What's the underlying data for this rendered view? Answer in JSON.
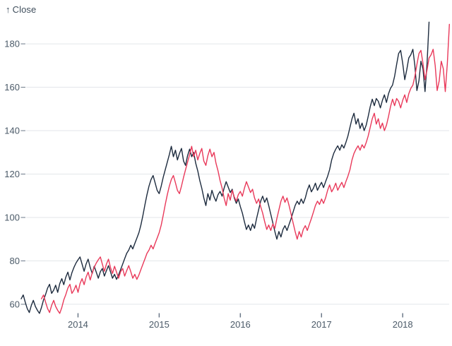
{
  "chart": {
    "axis_title_arrow": "↑",
    "axis_title_text": "Close"
  },
  "colors": {
    "background": "#ffffff",
    "grid": "#e3e6ea",
    "tick": "#6b7888",
    "axis_label": "#4b5a68",
    "title": "#3f4e5c",
    "series_dark": "#1d2b3e",
    "series_red": "#e9395a"
  },
  "chart_data": {
    "type": "line",
    "title": "",
    "xlabel": "",
    "ylabel": "Close",
    "legend": "none",
    "grid": "horizontal",
    "x_ticks": [
      2014,
      2015,
      2016,
      2017,
      2018
    ],
    "y_ticks": [
      60,
      80,
      100,
      120,
      140,
      160,
      180
    ],
    "x_domain": [
      2013.3,
      2018.59
    ],
    "y_domain": [
      42.4,
      200.2
    ],
    "series": [
      {
        "name": "dark",
        "color": "#1d2b3e",
        "x_start": 2013.3,
        "x_step": 0.025,
        "values": [
          62.5,
          64.3,
          61.0,
          58.0,
          56.2,
          59.5,
          61.8,
          59.0,
          57.2,
          55.8,
          58.5,
          62.0,
          64.5,
          67.5,
          69.2,
          65.0,
          66.5,
          68.8,
          65.5,
          69.5,
          71.8,
          69.0,
          72.5,
          74.8,
          71.2,
          74.5,
          77.0,
          79.0,
          80.5,
          81.8,
          78.5,
          75.2,
          78.5,
          80.8,
          77.0,
          74.2,
          77.5,
          74.8,
          72.0,
          75.0,
          76.5,
          73.0,
          75.5,
          77.8,
          75.0,
          72.0,
          73.8,
          71.5,
          73.5,
          76.0,
          78.5,
          81.0,
          83.5,
          85.0,
          87.2,
          85.5,
          88.0,
          90.5,
          93.0,
          96.5,
          101.0,
          106.0,
          110.5,
          114.5,
          117.5,
          119.3,
          116.0,
          112.5,
          111.0,
          114.5,
          118.5,
          122.0,
          125.5,
          129.0,
          132.8,
          128.0,
          131.0,
          126.5,
          129.5,
          131.8,
          126.0,
          124.0,
          128.5,
          131.5,
          128.0,
          130.0,
          125.0,
          121.5,
          117.0,
          113.5,
          109.0,
          105.5,
          111.0,
          108.0,
          112.5,
          109.5,
          107.5,
          110.5,
          112.0,
          109.8,
          113.5,
          116.5,
          114.0,
          111.5,
          113.0,
          109.0,
          106.5,
          108.5,
          105.0,
          102.0,
          98.0,
          94.5,
          96.5,
          94.0,
          97.0,
          95.0,
          99.5,
          103.5,
          107.5,
          109.8,
          107.0,
          109.0,
          105.5,
          101.5,
          97.5,
          93.5,
          90.0,
          93.5,
          91.0,
          94.5,
          96.2,
          94.0,
          96.8,
          99.5,
          102.5,
          105.5,
          107.5,
          106.0,
          108.5,
          106.5,
          109.0,
          112.5,
          115.0,
          111.8,
          113.5,
          115.8,
          112.5,
          114.5,
          116.2,
          113.8,
          116.5,
          119.0,
          122.0,
          126.5,
          129.5,
          131.5,
          133.0,
          131.0,
          133.5,
          132.0,
          134.5,
          137.5,
          141.5,
          145.5,
          148.0,
          143.0,
          145.5,
          141.0,
          143.5,
          140.0,
          142.5,
          146.5,
          151.0,
          154.5,
          151.5,
          154.8,
          153.5,
          150.5,
          154.0,
          156.5,
          153.0,
          157.0,
          159.5,
          161.0,
          165.0,
          170.5,
          175.5,
          177.0,
          171.0,
          163.5,
          168.0,
          173.5,
          175.0,
          177.5,
          170.0,
          158.5,
          163.0,
          172.0,
          168.5,
          158.0,
          171.0,
          190.0
        ]
      },
      {
        "name": "red",
        "color": "#e9395a",
        "x_start": 2013.55,
        "x_step": 0.025,
        "values": [
          62.5,
          64.3,
          61.0,
          58.0,
          56.2,
          59.5,
          61.8,
          59.0,
          57.2,
          55.8,
          58.5,
          62.0,
          64.5,
          67.5,
          69.2,
          65.0,
          66.5,
          68.8,
          65.5,
          69.5,
          71.8,
          69.0,
          72.5,
          74.8,
          71.2,
          74.5,
          77.0,
          79.0,
          80.5,
          81.8,
          78.5,
          75.2,
          78.5,
          80.8,
          77.0,
          74.2,
          77.5,
          74.8,
          72.0,
          75.0,
          76.5,
          73.0,
          75.5,
          77.8,
          75.0,
          72.0,
          73.8,
          71.5,
          73.5,
          76.0,
          78.5,
          81.0,
          83.5,
          85.0,
          87.2,
          85.5,
          88.0,
          90.5,
          93.0,
          96.5,
          101.0,
          106.0,
          110.5,
          114.5,
          117.5,
          119.3,
          116.0,
          112.5,
          111.0,
          114.5,
          118.5,
          122.0,
          125.5,
          129.0,
          132.8,
          128.0,
          131.0,
          126.5,
          129.5,
          131.8,
          126.0,
          124.0,
          128.5,
          131.5,
          128.0,
          130.0,
          125.0,
          121.5,
          117.0,
          113.5,
          109.0,
          105.5,
          111.0,
          108.0,
          112.5,
          109.5,
          107.5,
          110.5,
          112.0,
          109.8,
          113.5,
          116.5,
          114.0,
          111.5,
          113.0,
          109.0,
          106.5,
          108.5,
          105.0,
          102.0,
          98.0,
          94.5,
          96.5,
          94.0,
          97.0,
          95.0,
          99.5,
          103.5,
          107.5,
          109.8,
          107.0,
          109.0,
          105.5,
          101.5,
          97.5,
          93.5,
          90.0,
          93.5,
          91.0,
          94.5,
          96.2,
          94.0,
          96.8,
          99.5,
          102.5,
          105.5,
          107.5,
          106.0,
          108.5,
          106.5,
          109.0,
          112.5,
          115.0,
          111.8,
          113.5,
          115.8,
          112.5,
          114.5,
          116.2,
          113.8,
          116.5,
          119.0,
          122.0,
          126.5,
          129.5,
          131.5,
          133.0,
          131.0,
          133.5,
          132.0,
          134.5,
          137.5,
          141.5,
          145.5,
          148.0,
          143.0,
          145.5,
          141.0,
          143.5,
          140.0,
          142.5,
          146.5,
          151.0,
          154.5,
          151.5,
          154.8,
          153.5,
          150.5,
          154.0,
          156.5,
          153.0,
          157.0,
          159.5,
          161.0,
          165.0,
          170.5,
          175.5,
          177.0,
          171.0,
          163.5,
          168.0,
          173.5,
          175.0,
          177.5,
          170.0,
          158.5,
          163.0,
          172.0,
          168.5,
          158.0,
          171.0,
          189.0
        ]
      }
    ]
  }
}
